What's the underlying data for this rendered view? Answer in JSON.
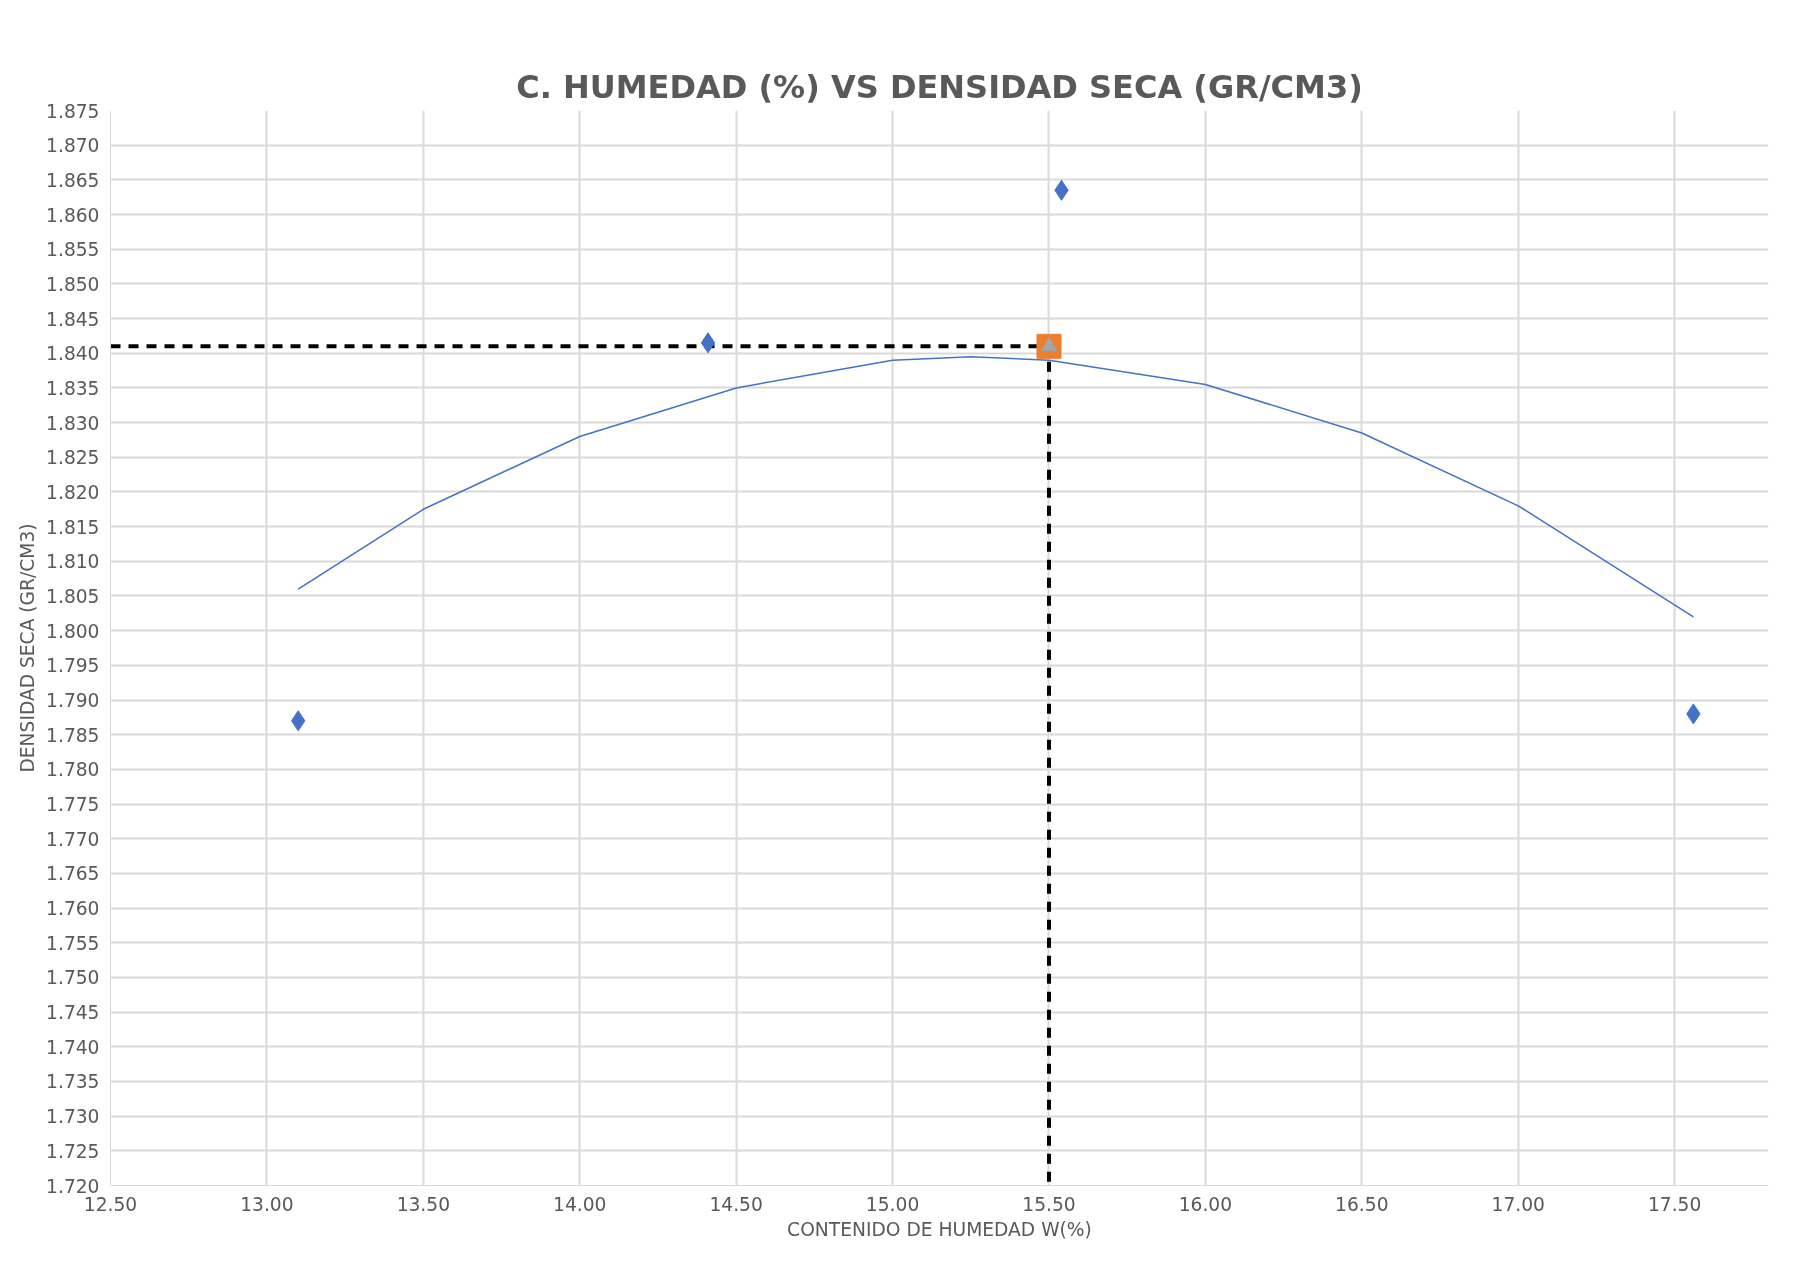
{
  "chart_data": {
    "type": "scatter",
    "title": "C. HUMEDAD (%) VS DENSIDAD SECA (GR/CM3)",
    "xlabel": "CONTENIDO DE HUMEDAD W(%)",
    "ylabel": "DENSIDAD SECA (GR/CM3)",
    "xlim": [
      12.5,
      17.8
    ],
    "xticks": [
      {
        "value": 12.5,
        "label": "12.50"
      },
      {
        "value": 13,
        "label": "13.00"
      },
      {
        "value": 13.5,
        "label": "13.50"
      },
      {
        "value": 14,
        "label": "14.00"
      },
      {
        "value": 14.5,
        "label": "14.50"
      },
      {
        "value": 15,
        "label": "15.00"
      },
      {
        "value": 15.5,
        "label": "15.50"
      },
      {
        "value": 16,
        "label": "16.00"
      },
      {
        "value": 16.5,
        "label": "16.50"
      },
      {
        "value": 17,
        "label": "17.00"
      },
      {
        "value": 17.5,
        "label": "17.50"
      }
    ],
    "ylim": [
      1.72,
      1.875
    ],
    "yticks": [
      {
        "value": 1.72,
        "label": "1.720"
      },
      1.725,
      {
        "value": 1.73,
        "label": "1.730"
      },
      1.735,
      {
        "value": 1.74,
        "label": "1.740"
      },
      1.745,
      {
        "value": 1.75,
        "label": "1.750"
      },
      1.755,
      {
        "value": 1.76,
        "label": "1.760"
      },
      1.765,
      {
        "value": 1.77,
        "label": "1.770"
      },
      1.775,
      {
        "value": 1.78,
        "label": "1.780"
      },
      1.785,
      {
        "value": 1.79,
        "label": "1.790"
      },
      1.795,
      {
        "value": 1.8,
        "label": "1.800"
      },
      1.805,
      {
        "value": 1.81,
        "label": "1.810"
      },
      1.815,
      {
        "value": 1.82,
        "label": "1.820"
      },
      1.825,
      {
        "value": 1.83,
        "label": "1.830"
      },
      1.835,
      {
        "value": 1.84,
        "label": "1.840"
      },
      1.845,
      {
        "value": 1.85,
        "label": "1.850"
      },
      1.855,
      {
        "value": 1.86,
        "label": "1.860"
      },
      1.865,
      {
        "value": 1.87,
        "label": "1.870"
      },
      1.875
    ],
    "grid": true,
    "series": [
      {
        "type": "line",
        "color": "#000000",
        "line_style": "dashed",
        "marker": "none",
        "x": [
          12.5,
          15.5,
          15.5
        ],
        "values": [
          1.841,
          1.841,
          1.72
        ]
      },
      {
        "type": "line",
        "color": "#4472c4",
        "line_style": "solid",
        "marker": "none",
        "x": [
          13.1,
          13.5,
          14.0,
          14.5,
          15.0,
          15.25,
          15.5,
          16.0,
          16.5,
          17.0,
          17.56
        ],
        "values": [
          1.806,
          1.8175,
          1.828,
          1.835,
          1.839,
          1.8395,
          1.839,
          1.8355,
          1.8285,
          1.818,
          1.802
        ]
      },
      {
        "color": "#4472c4",
        "marker": "diamond",
        "x": [
          13.1,
          14.41,
          15.54,
          17.56
        ],
        "values": [
          1.787,
          1.8415,
          1.8635,
          1.788
        ]
      },
      {
        "color": "#ed7d31",
        "marker": "square",
        "x": [
          15.5
        ],
        "values": [
          1.841
        ]
      },
      {
        "color": "#a5a5a5",
        "marker": "triangle",
        "x": [
          15.5
        ],
        "values": [
          1.841
        ]
      }
    ]
  }
}
